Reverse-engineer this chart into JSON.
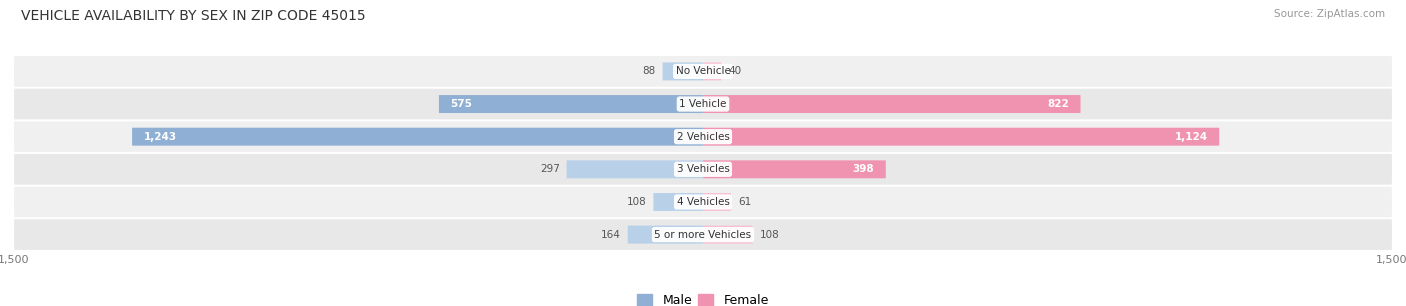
{
  "title": "VEHICLE AVAILABILITY BY SEX IN ZIP CODE 45015",
  "source": "Source: ZipAtlas.com",
  "categories": [
    "No Vehicle",
    "1 Vehicle",
    "2 Vehicles",
    "3 Vehicles",
    "4 Vehicles",
    "5 or more Vehicles"
  ],
  "male_values": [
    88,
    575,
    1243,
    297,
    108,
    164
  ],
  "female_values": [
    40,
    822,
    1124,
    398,
    61,
    108
  ],
  "male_color": "#90afd4",
  "female_color": "#f093b0",
  "male_color_light": "#b8d0e8",
  "female_color_light": "#f8c0d4",
  "row_colors": [
    "#f0f0f0",
    "#e8e8e8"
  ],
  "label_color": "#555555",
  "title_color": "#333333",
  "max_val": 1500,
  "bar_height": 0.55,
  "legend_male": "Male",
  "legend_female": "Female"
}
